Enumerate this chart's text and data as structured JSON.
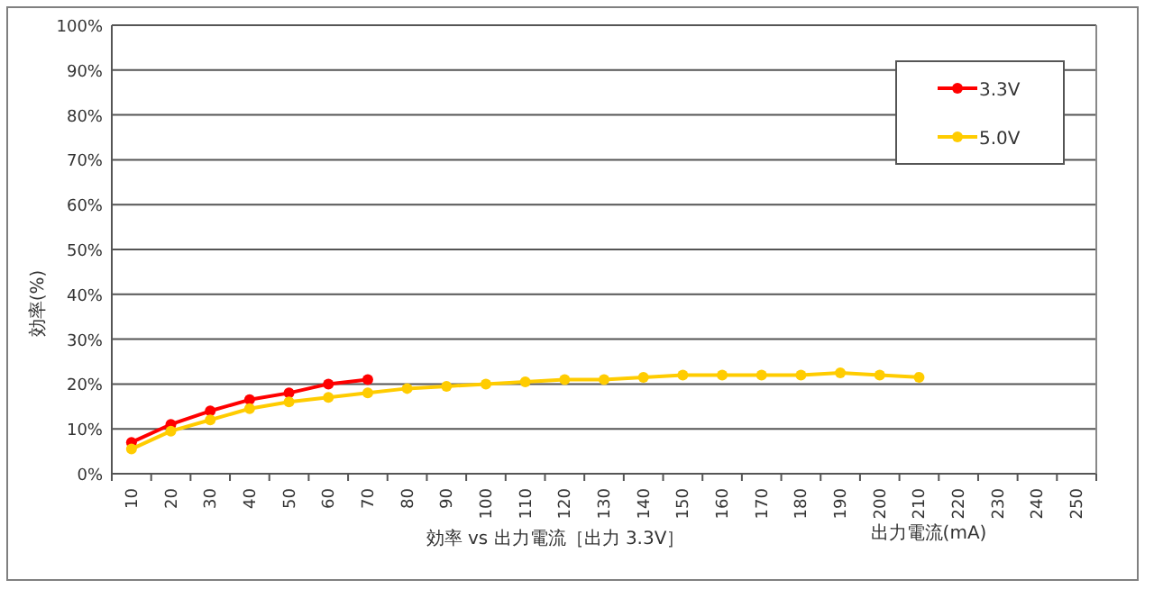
{
  "chart_data": {
    "type": "line",
    "title": "効率 vs 出力電流［出力 3.3V］",
    "xlabel": "出力電流(mA)",
    "ylabel": "効率(%)",
    "categories": [
      "10",
      "20",
      "30",
      "40",
      "50",
      "60",
      "70",
      "80",
      "90",
      "100",
      "110",
      "120",
      "130",
      "140",
      "150",
      "160",
      "170",
      "180",
      "190",
      "200",
      "210",
      "220",
      "230",
      "240",
      "250"
    ],
    "series": [
      {
        "name": "3.3V",
        "color": "#ff0000",
        "values": [
          7,
          11,
          14,
          16.5,
          18,
          20,
          21,
          null,
          null,
          null,
          null,
          null,
          null,
          null,
          null,
          null,
          null,
          null,
          null,
          null,
          null,
          null,
          null,
          null,
          null
        ]
      },
      {
        "name": "5.0V",
        "color": "#ffcc00",
        "values": [
          5.5,
          9.5,
          12,
          14.5,
          16,
          17,
          18,
          19,
          19.5,
          20,
          20.5,
          21,
          21,
          21.5,
          22,
          22,
          22,
          22,
          22.5,
          22,
          21.5,
          null,
          null,
          null,
          null
        ]
      }
    ],
    "ylim": [
      0,
      100
    ],
    "yticks": [
      {
        "value": 0,
        "label": "0%"
      },
      {
        "value": 10,
        "label": "10%"
      },
      {
        "value": 20,
        "label": "20%"
      },
      {
        "value": 30,
        "label": "30%"
      },
      {
        "value": 40,
        "label": "40%"
      },
      {
        "value": 50,
        "label": "50%"
      },
      {
        "value": 60,
        "label": "60%"
      },
      {
        "value": 70,
        "label": "70%"
      },
      {
        "value": 80,
        "label": "80%"
      },
      {
        "value": 90,
        "label": "90%"
      },
      {
        "value": 100,
        "label": "100%"
      }
    ],
    "grid": "y",
    "legend": "top right",
    "marker": "circle",
    "line_style": "solid"
  }
}
